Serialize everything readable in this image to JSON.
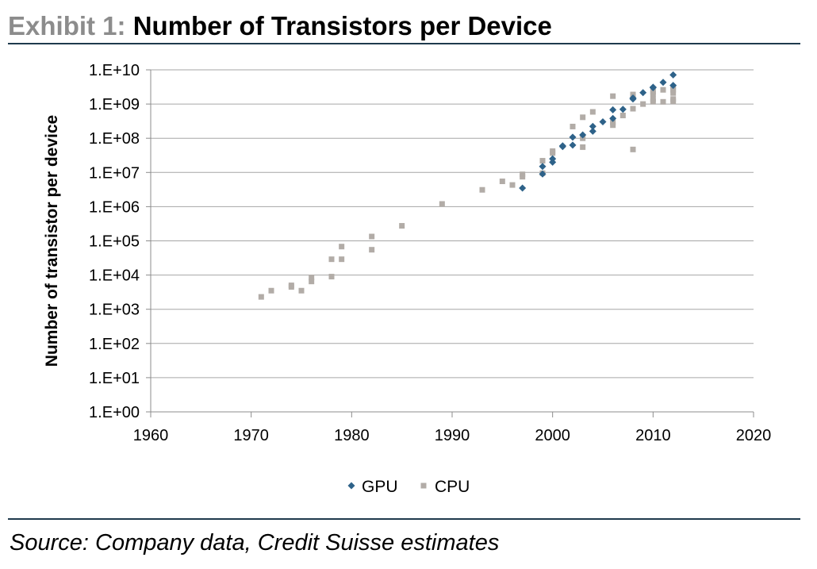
{
  "header": {
    "label": "Exhibit 1:",
    "title": "Number of Transistors per Device"
  },
  "footer": {
    "source": "Source: Company data, Credit Suisse estimates"
  },
  "chart_data": {
    "type": "scatter",
    "ylabel": "Number of transistor per device",
    "xlabel": "",
    "xlim": [
      1960,
      2020
    ],
    "ylim": [
      1,
      10000000000
    ],
    "y_scale": "log",
    "x_ticks": [
      "1960",
      "1970",
      "1980",
      "1990",
      "2000",
      "2010",
      "2020"
    ],
    "y_ticks": [
      "1.E+00",
      "1.E+01",
      "1.E+02",
      "1.E+03",
      "1.E+04",
      "1.E+05",
      "1.E+06",
      "1.E+07",
      "1.E+08",
      "1.E+09",
      "1.E+10"
    ],
    "grid": "horizontal",
    "legend_position": "bottom",
    "series": [
      {
        "name": "GPU",
        "color": "#2e6289",
        "marker": "diamond",
        "points": [
          [
            1997,
            3500000
          ],
          [
            1999,
            9000000
          ],
          [
            1999,
            15000000
          ],
          [
            2000,
            20000000
          ],
          [
            2000,
            25000000
          ],
          [
            2001,
            57000000
          ],
          [
            2001,
            60000000
          ],
          [
            2002,
            63000000
          ],
          [
            2002,
            107000000
          ],
          [
            2003,
            125000000
          ],
          [
            2004,
            160000000
          ],
          [
            2004,
            222000000
          ],
          [
            2005,
            302000000
          ],
          [
            2006,
            380000000
          ],
          [
            2006,
            680000000
          ],
          [
            2007,
            700000000
          ],
          [
            2008,
            1400000000
          ],
          [
            2008,
            1500000000
          ],
          [
            2009,
            2150000000
          ],
          [
            2010,
            3000000000
          ],
          [
            2010,
            3100000000
          ],
          [
            2011,
            4300000000
          ],
          [
            2012,
            3500000000
          ],
          [
            2012,
            7100000000
          ]
        ]
      },
      {
        "name": "CPU",
        "color": "#b2aca7",
        "marker": "square",
        "points": [
          [
            1971,
            2300
          ],
          [
            1972,
            3500
          ],
          [
            1974,
            4500
          ],
          [
            1974,
            5000
          ],
          [
            1975,
            3500
          ],
          [
            1976,
            6500
          ],
          [
            1976,
            8500
          ],
          [
            1978,
            29000
          ],
          [
            1978,
            9000
          ],
          [
            1979,
            29000
          ],
          [
            1979,
            68000
          ],
          [
            1982,
            134000
          ],
          [
            1982,
            55000
          ],
          [
            1985,
            275000
          ],
          [
            1989,
            1200000
          ],
          [
            1993,
            3100000
          ],
          [
            1995,
            5500000
          ],
          [
            1996,
            4300000
          ],
          [
            1997,
            7500000
          ],
          [
            1997,
            8800000
          ],
          [
            1999,
            9500000
          ],
          [
            1999,
            22000000
          ],
          [
            2000,
            37000000
          ],
          [
            2000,
            42000000
          ],
          [
            2002,
            220000000
          ],
          [
            2003,
            55000000
          ],
          [
            2003,
            100000000
          ],
          [
            2003,
            410000000
          ],
          [
            2004,
            590000000
          ],
          [
            2006,
            241000000
          ],
          [
            2006,
            291000000
          ],
          [
            2006,
            1700000000
          ],
          [
            2007,
            463000000
          ],
          [
            2008,
            47000000
          ],
          [
            2008,
            730000000
          ],
          [
            2008,
            1900000000
          ],
          [
            2009,
            1000000000
          ],
          [
            2010,
            1170000000
          ],
          [
            2010,
            1400000000
          ],
          [
            2010,
            2000000000
          ],
          [
            2010,
            2300000000
          ],
          [
            2011,
            1160000000
          ],
          [
            2011,
            2600000000
          ],
          [
            2012,
            1200000000
          ],
          [
            2012,
            1400000000
          ],
          [
            2012,
            2100000000
          ],
          [
            2012,
            2600000000
          ],
          [
            2012,
            3100000000
          ]
        ]
      }
    ]
  }
}
